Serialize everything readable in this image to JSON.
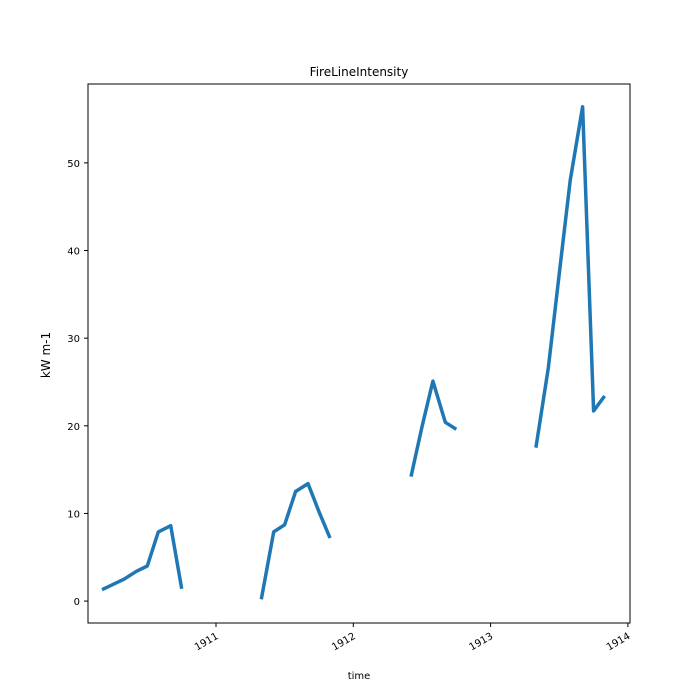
{
  "chart_data": {
    "type": "line",
    "title": "FireLineIntensity",
    "xlabel": "time",
    "ylabel": "kW m-1",
    "xlim": [
      1910.2,
      1914.0
    ],
    "ylim": [
      -2.5,
      59.0
    ],
    "x_ticks": [
      1911,
      1912,
      1913,
      1914
    ],
    "y_ticks": [
      0,
      10,
      20,
      30,
      40,
      50
    ],
    "grid": false,
    "line_color": "#1f77b4",
    "series": [
      {
        "segments": [
          {
            "x": [
              1910.17,
              1910.33,
              1910.42,
              1910.5,
              1910.58,
              1910.67,
              1910.75
            ],
            "y": [
              1.3,
              2.5,
              3.4,
              4.0,
              7.9,
              8.6,
              1.4
            ]
          },
          {
            "x": [
              1911.33,
              1911.42,
              1911.5,
              1911.58,
              1911.67,
              1911.75,
              1911.83
            ],
            "y": [
              0.2,
              7.9,
              8.7,
              12.5,
              13.4,
              10.2,
              7.2
            ]
          },
          {
            "x": [
              1912.42,
              1912.5,
              1912.58,
              1912.67,
              1912.75
            ],
            "y": [
              14.2,
              19.9,
              25.1,
              20.4,
              19.6
            ]
          },
          {
            "x": [
              1913.33,
              1913.42,
              1913.5,
              1913.58,
              1913.67,
              1913.75,
              1913.83
            ],
            "y": [
              17.5,
              26.6,
              37.4,
              48.0,
              56.4,
              21.7,
              23.4
            ]
          }
        ]
      }
    ]
  }
}
